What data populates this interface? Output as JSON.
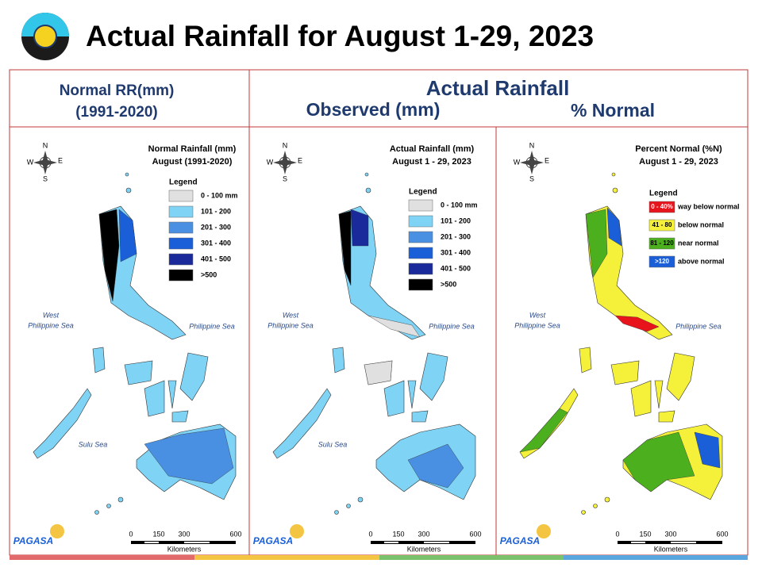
{
  "header": {
    "title": "Actual Rainfall for August 1-29, 2023"
  },
  "columns": {
    "normal": {
      "line1": "Normal RR(mm)",
      "line2": "(1991-2020)"
    },
    "actual": {
      "title": "Actual Rainfall",
      "observed": "Observed (mm)",
      "percent": "% Normal"
    }
  },
  "panels": [
    {
      "title": [
        "Normal Rainfall (mm)",
        "August (1991-2020)"
      ],
      "legend_title": "Legend",
      "legend": [
        {
          "label": "0 - 100 mm",
          "color": "#e0e0e0"
        },
        {
          "label": "101 - 200",
          "color": "#7fd3f5"
        },
        {
          "label": "201 - 300",
          "color": "#4a90e2"
        },
        {
          "label": "301 - 400",
          "color": "#1a5fd8"
        },
        {
          "label": "401 - 500",
          "color": "#1a2a9a"
        },
        {
          "label": ">500",
          "color": "#000000"
        }
      ],
      "seas": {
        "west": [
          "West",
          "Philippine Sea"
        ],
        "east": "Philippine Sea",
        "sulu": "Sulu Sea"
      },
      "compass": {
        "n": "N",
        "e": "E",
        "s": "S",
        "w": "W"
      },
      "scale": {
        "ticks": [
          "0",
          "150",
          "300",
          "600"
        ],
        "unit": "Kilometers"
      },
      "logo": "PAGASA"
    },
    {
      "title": [
        "Actual Rainfall (mm)",
        "August 1 - 29, 2023"
      ],
      "legend_title": "Legend",
      "legend": [
        {
          "label": "0 - 100 mm",
          "color": "#e0e0e0"
        },
        {
          "label": "101 - 200",
          "color": "#7fd3f5"
        },
        {
          "label": "201 - 300",
          "color": "#4a90e2"
        },
        {
          "label": "301 - 400",
          "color": "#1a5fd8"
        },
        {
          "label": "401 - 500",
          "color": "#1a2a9a"
        },
        {
          "label": ">500",
          "color": "#000000"
        }
      ],
      "seas": {
        "west": [
          "West",
          "Philippine Sea"
        ],
        "east": "Philippine Sea",
        "sulu": "Sulu Sea"
      },
      "compass": {
        "n": "N",
        "e": "E",
        "s": "S",
        "w": "W"
      },
      "scale": {
        "ticks": [
          "0",
          "150",
          "300",
          "600"
        ],
        "unit": "Kilometers"
      },
      "logo": "PAGASA"
    },
    {
      "title": [
        "Percent Normal (%N)",
        "August 1 - 29, 2023"
      ],
      "legend_title": "Legend",
      "legend": [
        {
          "label": "0 - 40%",
          "desc": "way below normal",
          "color": "#e8141c"
        },
        {
          "label": "41 - 80",
          "desc": "below normal",
          "color": "#f5f03a"
        },
        {
          "label": "81 - 120",
          "desc": "near normal",
          "color": "#4caf1e"
        },
        {
          "label": ">120",
          "desc": "above normal",
          "color": "#1a5fd8"
        }
      ],
      "seas": {
        "west": [
          "West",
          "Philippine Sea"
        ],
        "east": "Philippine Sea"
      },
      "compass": {
        "n": "N",
        "e": "E",
        "s": "S",
        "w": "W"
      },
      "scale": {
        "ticks": [
          "0",
          "150",
          "300",
          "600"
        ],
        "unit": "Kilometers"
      },
      "logo": "PAGASA"
    }
  ]
}
